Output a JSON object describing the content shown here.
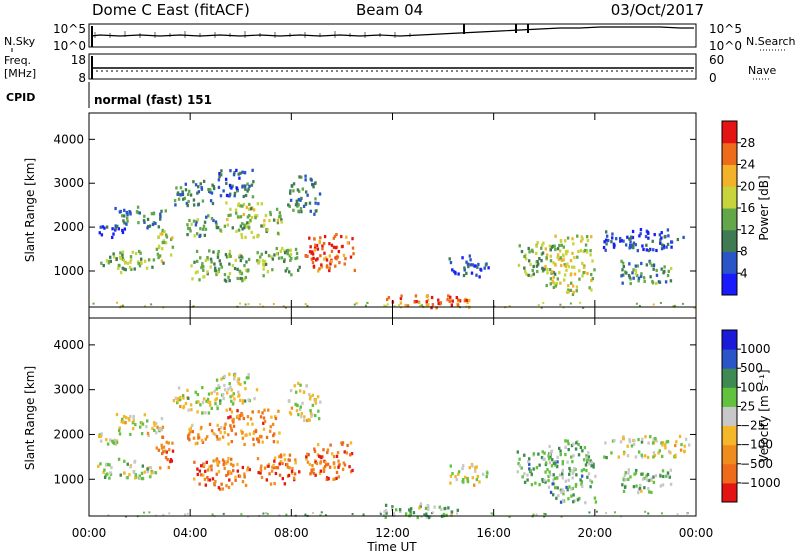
{
  "header": {
    "station": "Dome C East (fitACF)",
    "beam": "Beam 04",
    "date": "03/Oct/2017"
  },
  "status": {
    "nsky_label": "N.Sky",
    "nsky_ticks": [
      "10^5",
      "10^0"
    ],
    "nsearch_label": "N.Search",
    "nsearch_ticks": [
      "10^5",
      "10^0"
    ],
    "freq_label_1": "Freq.",
    "freq_label_2": "[MHz]",
    "freq_ticks": [
      "18",
      "8"
    ],
    "nave_label": "Nave",
    "nave_ticks": [
      "60",
      "0"
    ],
    "cpid_label": "CPID",
    "cpid_text": "normal (fast) 151"
  },
  "chart_data": [
    {
      "type": "heatmap",
      "panel": "power",
      "ylabel": "Slant Range [km]",
      "xlabel": "Time UT",
      "x_ticks": [
        "00:00",
        "04:00",
        "08:00",
        "12:00",
        "16:00",
        "20:00",
        "00:00"
      ],
      "x_range_hours": [
        0,
        24
      ],
      "y_ticks": [
        1000,
        2000,
        3000,
        4000
      ],
      "ylim": [
        180,
        4600
      ],
      "colorbar": {
        "label": "Power [dB]",
        "ticks": [
          "28",
          "24",
          "20",
          "16",
          "12",
          "8",
          "4"
        ],
        "range": [
          0,
          30
        ],
        "colors": [
          "#1a1aff",
          "#2a55c8",
          "#3f7a52",
          "#62a84a",
          "#c8d43c",
          "#f2b22a",
          "#ee6b1c",
          "#e51414"
        ]
      },
      "regions": [
        {
          "t": [
            0.3,
            2.6
          ],
          "r": [
            1000,
            1500
          ],
          "level": 0.45
        },
        {
          "t": [
            0.3,
            1.4
          ],
          "r": [
            1800,
            2100
          ],
          "level": 0.15
        },
        {
          "t": [
            1.0,
            3.0
          ],
          "r": [
            2000,
            2500
          ],
          "level": 0.3
        },
        {
          "t": [
            2.6,
            3.3
          ],
          "r": [
            1200,
            2000
          ],
          "level": 0.5
        },
        {
          "t": [
            3.3,
            5.3
          ],
          "r": [
            2500,
            3100
          ],
          "level": 0.3
        },
        {
          "t": [
            3.8,
            5.3
          ],
          "r": [
            1800,
            2300
          ],
          "level": 0.35
        },
        {
          "t": [
            4.0,
            6.4
          ],
          "r": [
            800,
            1500
          ],
          "level": 0.45
        },
        {
          "t": [
            5.3,
            7.6
          ],
          "r": [
            1800,
            2600
          ],
          "level": 0.5
        },
        {
          "t": [
            5.0,
            6.6
          ],
          "r": [
            2700,
            3400
          ],
          "level": 0.25
        },
        {
          "t": [
            6.6,
            8.3
          ],
          "r": [
            900,
            1600
          ],
          "level": 0.45
        },
        {
          "t": [
            7.8,
            9.1
          ],
          "r": [
            2300,
            3200
          ],
          "level": 0.3
        },
        {
          "t": [
            8.5,
            10.5
          ],
          "r": [
            1000,
            1900
          ],
          "level": 0.85
        },
        {
          "t": [
            11.6,
            15.0
          ],
          "r": [
            180,
            500
          ],
          "level": 0.8
        },
        {
          "t": [
            14.2,
            15.8
          ],
          "r": [
            900,
            1400
          ],
          "level": 0.15
        },
        {
          "t": [
            16.9,
            18.5
          ],
          "r": [
            900,
            1700
          ],
          "level": 0.45
        },
        {
          "t": [
            18.0,
            20.0
          ],
          "r": [
            500,
            1900
          ],
          "level": 0.55
        },
        {
          "t": [
            20.3,
            23.7
          ],
          "r": [
            1500,
            2000
          ],
          "level": 0.15
        },
        {
          "t": [
            21.0,
            23.0
          ],
          "r": [
            700,
            1300
          ],
          "level": 0.35
        }
      ]
    },
    {
      "type": "heatmap",
      "panel": "velocity",
      "ylabel": "Slant Range [km]",
      "xlabel": "Time UT",
      "x_ticks": [
        "00:00",
        "04:00",
        "08:00",
        "12:00",
        "16:00",
        "20:00",
        "00:00"
      ],
      "x_range_hours": [
        0,
        24
      ],
      "y_ticks": [
        1000,
        2000,
        3000,
        4000
      ],
      "ylim": [
        180,
        4600
      ],
      "colorbar": {
        "label": "Velocity [m s⁻¹]",
        "ticks": [
          "1000",
          "500",
          "100",
          "25",
          "−25",
          "−100",
          "−500",
          "−1000"
        ],
        "range": [
          -1200,
          1200
        ],
        "colors": [
          "#e51414",
          "#ee6b1c",
          "#f08c1e",
          "#f4b72a",
          "#c8c8c8",
          "#62c23e",
          "#3f8a52",
          "#2a55c8",
          "#1a1ad8"
        ]
      },
      "regions": [
        {
          "t": [
            0.3,
            2.6
          ],
          "r": [
            1000,
            1500
          ],
          "level": 0.55
        },
        {
          "t": [
            0.3,
            1.4
          ],
          "r": [
            1800,
            2100
          ],
          "level": 0.5
        },
        {
          "t": [
            1.0,
            3.0
          ],
          "r": [
            2000,
            2500
          ],
          "level": 0.5
        },
        {
          "t": [
            2.6,
            3.3
          ],
          "r": [
            1200,
            2000
          ],
          "level": 0.15
        },
        {
          "t": [
            3.3,
            5.3
          ],
          "r": [
            2500,
            3100
          ],
          "level": 0.5
        },
        {
          "t": [
            3.8,
            5.3
          ],
          "r": [
            1800,
            2300
          ],
          "level": 0.3
        },
        {
          "t": [
            4.0,
            6.4
          ],
          "r": [
            800,
            1500
          ],
          "level": 0.2
        },
        {
          "t": [
            5.3,
            7.6
          ],
          "r": [
            1800,
            2600
          ],
          "level": 0.25
        },
        {
          "t": [
            5.0,
            6.6
          ],
          "r": [
            2700,
            3400
          ],
          "level": 0.5
        },
        {
          "t": [
            6.6,
            8.3
          ],
          "r": [
            900,
            1600
          ],
          "level": 0.2
        },
        {
          "t": [
            7.8,
            9.1
          ],
          "r": [
            2300,
            3200
          ],
          "level": 0.5
        },
        {
          "t": [
            8.5,
            10.5
          ],
          "r": [
            1000,
            1900
          ],
          "level": 0.2
        },
        {
          "t": [
            11.6,
            15.0
          ],
          "r": [
            180,
            500
          ],
          "level": 0.6
        },
        {
          "t": [
            14.2,
            15.8
          ],
          "r": [
            900,
            1400
          ],
          "level": 0.5
        },
        {
          "t": [
            16.9,
            18.5
          ],
          "r": [
            900,
            1700
          ],
          "level": 0.62
        },
        {
          "t": [
            18.0,
            20.0
          ],
          "r": [
            500,
            1900
          ],
          "level": 0.62
        },
        {
          "t": [
            20.3,
            23.7
          ],
          "r": [
            1500,
            2000
          ],
          "level": 0.5
        },
        {
          "t": [
            21.0,
            23.0
          ],
          "r": [
            700,
            1300
          ],
          "level": 0.58
        }
      ]
    }
  ]
}
